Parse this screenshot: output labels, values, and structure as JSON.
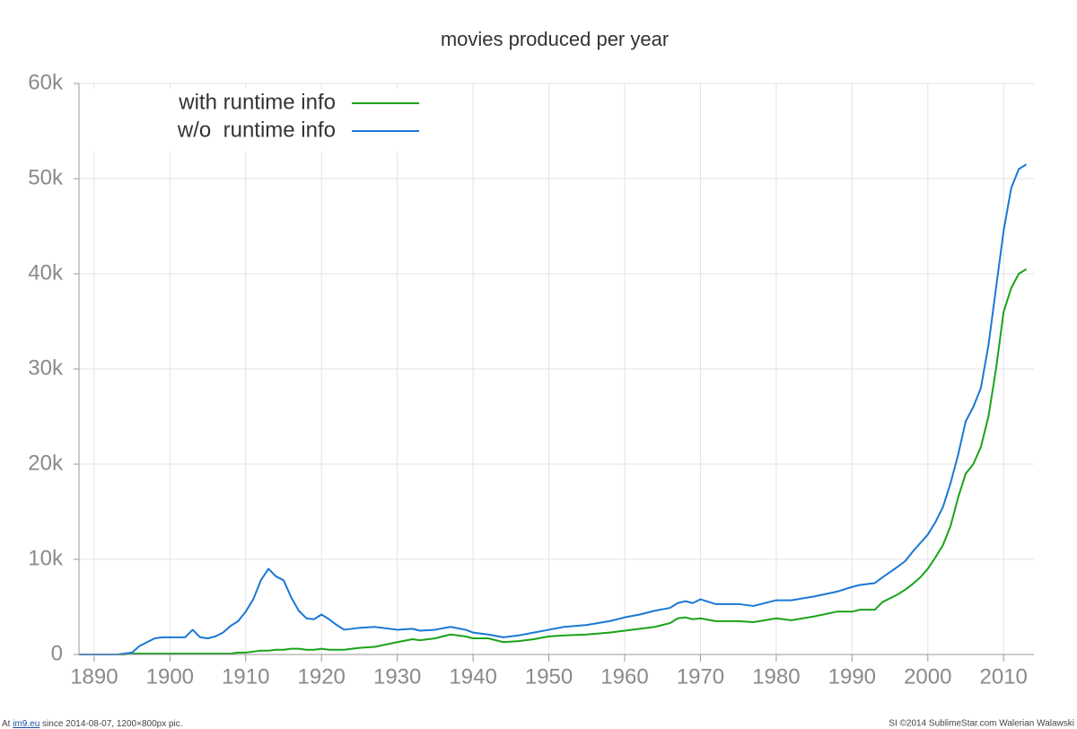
{
  "chart_data": {
    "type": "line",
    "title": "movies produced per year",
    "x": [
      1888,
      1893,
      1894,
      1895,
      1896,
      1897,
      1898,
      1899,
      1902,
      1903,
      1904,
      1905,
      1906,
      1907,
      1908,
      1909,
      1910,
      1911,
      1912,
      1913,
      1914,
      1915,
      1916,
      1917,
      1918,
      1919,
      1920,
      1921,
      1922,
      1923,
      1925,
      1927,
      1930,
      1932,
      1933,
      1935,
      1937,
      1939,
      1940,
      1942,
      1944,
      1946,
      1948,
      1950,
      1952,
      1955,
      1958,
      1960,
      1962,
      1964,
      1966,
      1967,
      1968,
      1969,
      1970,
      1972,
      1975,
      1977,
      1980,
      1982,
      1985,
      1988,
      1990,
      1991,
      1993,
      1994,
      1996,
      1997,
      1998,
      1999,
      2000,
      2001,
      2002,
      2003,
      2004,
      2005,
      2006,
      2007,
      2008,
      2009,
      2010,
      2011,
      2012,
      2013
    ],
    "series": [
      {
        "name": "with runtime info",
        "color": "#1aa31a",
        "values": [
          0,
          0,
          0,
          100,
          100,
          100,
          100,
          100,
          100,
          100,
          100,
          100,
          100,
          100,
          100,
          200,
          200,
          300,
          400,
          400,
          500,
          500,
          600,
          600,
          500,
          500,
          600,
          500,
          500,
          500,
          700,
          800,
          1300,
          1600,
          1500,
          1700,
          2100,
          1900,
          1700,
          1700,
          1300,
          1400,
          1600,
          1900,
          2000,
          2100,
          2300,
          2500,
          2700,
          2900,
          3300,
          3800,
          3900,
          3700,
          3800,
          3500,
          3500,
          3400,
          3800,
          3600,
          4000,
          4500,
          4500,
          4700,
          4700,
          5500,
          6300,
          6800,
          7400,
          8100,
          9000,
          10200,
          11500,
          13500,
          16500,
          19000,
          20000,
          21800,
          25000,
          30000,
          36000,
          38500,
          40000,
          40500
        ]
      },
      {
        "name": "w/o  runtime info",
        "color": "#1a78d4",
        "values": [
          0,
          0,
          100,
          200,
          900,
          1300,
          1700,
          1800,
          1800,
          2600,
          1800,
          1700,
          1900,
          2300,
          3000,
          3500,
          4500,
          5800,
          7800,
          9000,
          8200,
          7800,
          6000,
          4600,
          3800,
          3700,
          4200,
          3700,
          3100,
          2600,
          2800,
          2900,
          2600,
          2700,
          2500,
          2600,
          2900,
          2600,
          2300,
          2100,
          1800,
          2000,
          2300,
          2600,
          2900,
          3100,
          3500,
          3900,
          4200,
          4600,
          4900,
          5400,
          5600,
          5400,
          5800,
          5300,
          5300,
          5100,
          5700,
          5700,
          6100,
          6600,
          7100,
          7300,
          7500,
          8100,
          9200,
          9800,
          10800,
          11700,
          12600,
          13900,
          15500,
          18000,
          21000,
          24500,
          26000,
          28000,
          32500,
          38500,
          44500,
          49000,
          51000,
          51500
        ]
      }
    ],
    "xlim": [
      1888,
      2014
    ],
    "xticks": [
      1890,
      1900,
      1910,
      1920,
      1930,
      1940,
      1950,
      1960,
      1970,
      1980,
      1990,
      2000,
      2010
    ],
    "ylim": [
      0,
      60000
    ],
    "yticks": [
      0,
      {
        "value": 10000,
        "label": "10k"
      },
      {
        "value": 20000,
        "label": "20k"
      },
      {
        "value": 30000,
        "label": "30k"
      },
      {
        "value": 40000,
        "label": "40k"
      },
      {
        "value": 50000,
        "label": "50k"
      },
      {
        "value": 60000,
        "label": "60k"
      }
    ],
    "grid": true,
    "legend": "upper left"
  },
  "footer": {
    "left_prefix": "At",
    "left_link": "im9.eu",
    "left_suffix": "since 2014-08-07, 1200×800px pic.",
    "right": "SI ©2014 SublimeStar.com Walerian Walawski"
  }
}
